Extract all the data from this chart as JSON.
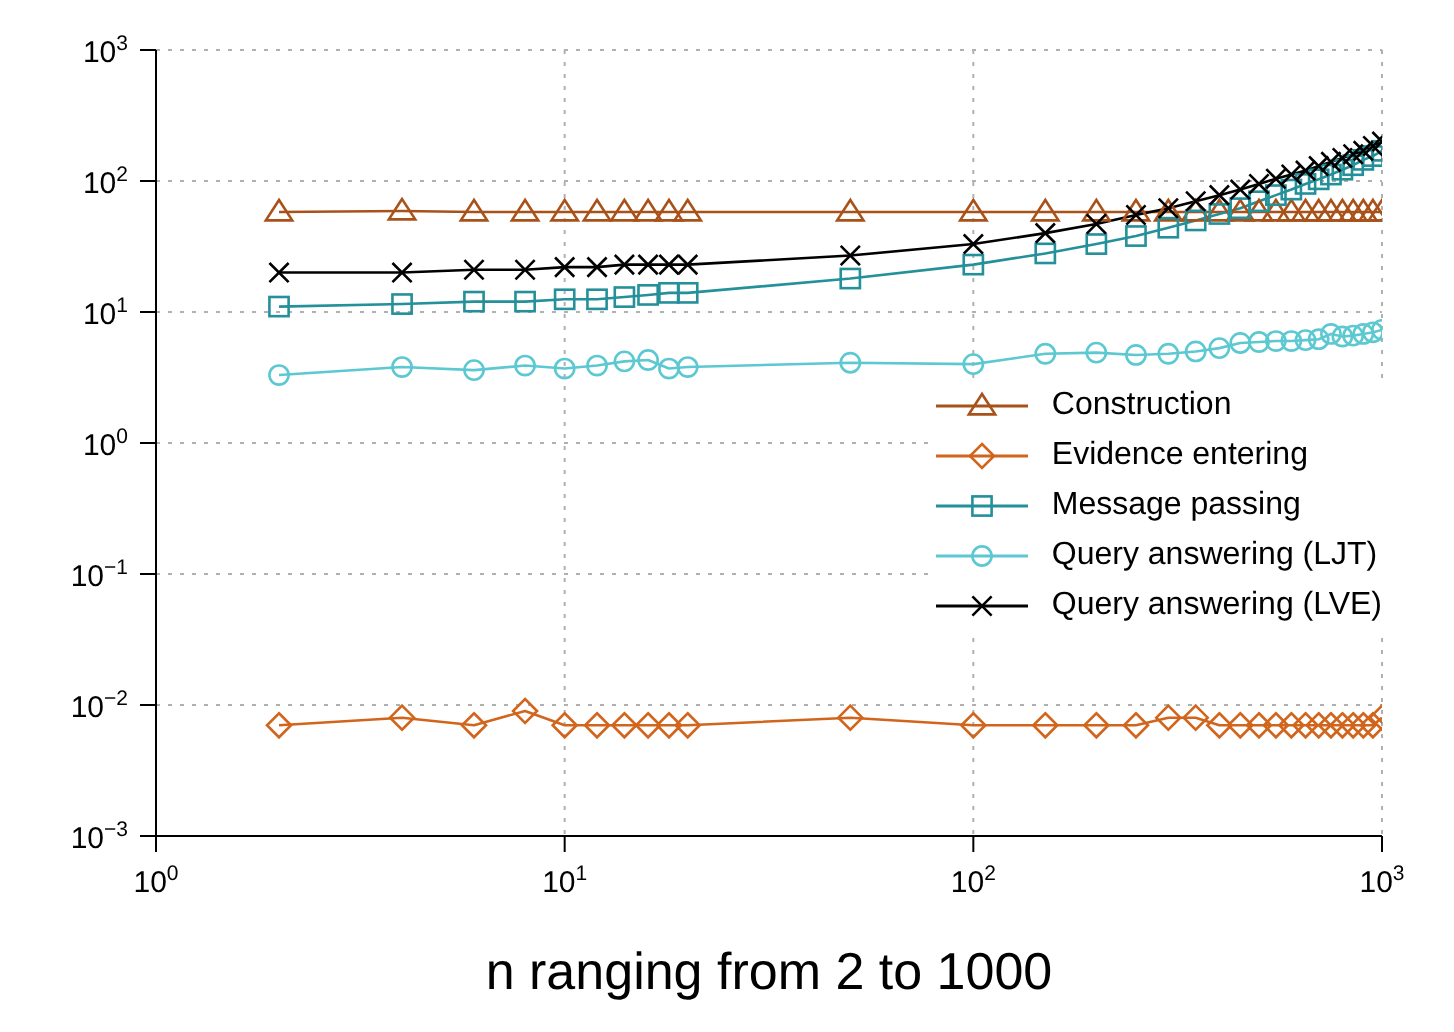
{
  "chart_data": {
    "type": "line",
    "xlabel": "n ranging from 2 to 1000",
    "log": "xy",
    "grid": true,
    "legend": "right",
    "line_style": "solid",
    "x": [
      2,
      4,
      6,
      8,
      10,
      12,
      14,
      16,
      18,
      20,
      50,
      100,
      150,
      200,
      250,
      300,
      350,
      400,
      450,
      500,
      550,
      600,
      650,
      700,
      750,
      800,
      850,
      900,
      950,
      1000
    ],
    "xlim": [
      1,
      1000
    ],
    "ylim": [
      0.001,
      1000
    ],
    "xticks": [
      {
        "value": 1,
        "label": "10$^{0}$"
      },
      {
        "value": 10,
        "label": "10$^{1}$"
      },
      {
        "value": 100,
        "label": "10$^{2}$"
      },
      {
        "value": 1000,
        "label": "10$^{3}$"
      }
    ],
    "yticks": [
      {
        "value": 0.001,
        "label": "10$^{−3}$"
      },
      {
        "value": 0.01,
        "label": "10$^{−2}$"
      },
      {
        "value": 0.1,
        "label": "10$^{−1}$"
      },
      {
        "value": 1,
        "label": "10$^{0}$"
      },
      {
        "value": 10,
        "label": "10$^{1}$"
      },
      {
        "value": 100,
        "label": "10$^{2}$"
      },
      {
        "value": 1000,
        "label": "10$^{3}$"
      }
    ],
    "series": [
      {
        "name": "Construction",
        "color": "#a8521a",
        "marker": "triangle",
        "values": [
          58,
          59,
          58,
          58,
          58,
          58,
          58,
          58,
          58,
          58,
          58,
          58,
          58,
          58,
          58,
          58,
          58,
          58,
          58,
          58,
          58,
          58,
          58,
          58,
          58,
          58,
          58,
          58,
          58,
          58
        ]
      },
      {
        "name": "Evidence entering",
        "color": "#d2651c",
        "marker": "diamond",
        "values": [
          0.007,
          0.008,
          0.007,
          0.009,
          0.007,
          0.007,
          0.007,
          0.007,
          0.007,
          0.007,
          0.008,
          0.007,
          0.007,
          0.007,
          0.007,
          0.008,
          0.008,
          0.007,
          0.007,
          0.007,
          0.007,
          0.007,
          0.007,
          0.007,
          0.007,
          0.007,
          0.007,
          0.007,
          0.007,
          0.008
        ]
      },
      {
        "name": "Message passing",
        "color": "#23909a",
        "marker": "square",
        "values": [
          11,
          11.5,
          12,
          12,
          12.5,
          12.5,
          13,
          13.5,
          14,
          14,
          18,
          23,
          28,
          33,
          38,
          44,
          50,
          56,
          62,
          70,
          78,
          86,
          95,
          103,
          112,
          122,
          132,
          145,
          155,
          170
        ]
      },
      {
        "name": "Query answering (LJT)",
        "color": "#5cc8d2",
        "marker": "circle",
        "values": [
          3.3,
          3.8,
          3.6,
          3.9,
          3.7,
          3.9,
          4.2,
          4.3,
          3.7,
          3.8,
          4.1,
          4.0,
          4.8,
          4.9,
          4.7,
          4.8,
          5.0,
          5.3,
          5.8,
          5.9,
          6.0,
          6.0,
          6.1,
          6.2,
          6.8,
          6.5,
          6.6,
          6.8,
          7.0,
          7.3
        ]
      },
      {
        "name": "Query answering (LVE)",
        "color": "#000000",
        "marker": "cross",
        "values": [
          20,
          20,
          21,
          21,
          22,
          22,
          23,
          23,
          23,
          23,
          27,
          33,
          40,
          47,
          55,
          62,
          70,
          78,
          86,
          95,
          104,
          112,
          120,
          130,
          140,
          150,
          160,
          170,
          185,
          200
        ]
      }
    ]
  }
}
